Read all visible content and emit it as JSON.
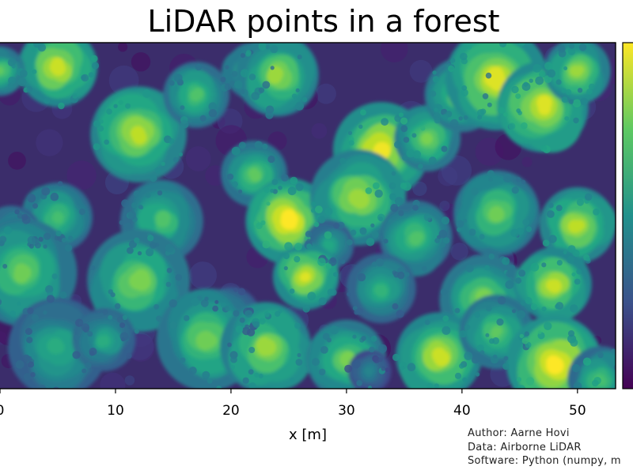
{
  "chart_data": {
    "type": "scatter",
    "title": "LiDAR points in a forest",
    "xlabel": "x [m]",
    "ylabel": "",
    "x_ticks": [
      0,
      10,
      20,
      30,
      40,
      50
    ],
    "xlim": [
      0,
      53.3
    ],
    "grid": false,
    "colormap": "viridis",
    "colorbar_position": "right",
    "trees": [
      {
        "x": 5.0,
        "h": 0.92
      },
      {
        "x": 0.0,
        "h": 0.75
      },
      {
        "x": 12.0,
        "h": 0.9
      },
      {
        "x": 17.0,
        "h": 0.72
      },
      {
        "x": 22.0,
        "h": 0.7
      },
      {
        "x": 24.0,
        "h": 0.85
      },
      {
        "x": 33.0,
        "h": 0.98
      },
      {
        "x": 37.0,
        "h": 0.8
      },
      {
        "x": 40.0,
        "h": 0.8
      },
      {
        "x": 43.0,
        "h": 0.95
      },
      {
        "x": 47.0,
        "h": 0.95
      },
      {
        "x": 50.0,
        "h": 0.85
      },
      {
        "x": 5.0,
        "h": 0.7
      },
      {
        "x": 1.0,
        "h": 0.62
      },
      {
        "x": 14.0,
        "h": 0.72
      },
      {
        "x": 22.0,
        "h": 0.75
      },
      {
        "x": 25.0,
        "h": 1.0
      },
      {
        "x": 31.0,
        "h": 0.85
      },
      {
        "x": 28.5,
        "h": 0.6
      },
      {
        "x": 36.0,
        "h": 0.72
      },
      {
        "x": 43.0,
        "h": 0.78
      },
      {
        "x": 50.0,
        "h": 0.9
      },
      {
        "x": 2.0,
        "h": 0.78
      },
      {
        "x": 12.0,
        "h": 0.8
      },
      {
        "x": 20.0,
        "h": 0.55
      },
      {
        "x": 26.5,
        "h": 0.95
      },
      {
        "x": 33.0,
        "h": 0.65
      },
      {
        "x": 42.0,
        "h": 0.8
      },
      {
        "x": 48.0,
        "h": 0.92
      },
      {
        "x": 5.0,
        "h": 0.62
      },
      {
        "x": 18.0,
        "h": 0.78
      },
      {
        "x": 23.0,
        "h": 0.85
      },
      {
        "x": 30.0,
        "h": 0.8
      },
      {
        "x": 38.0,
        "h": 0.92
      },
      {
        "x": 43.0,
        "h": 0.75
      },
      {
        "x": 48.0,
        "h": 1.0
      },
      {
        "x": 52.0,
        "h": 0.7
      },
      {
        "x": 9.0,
        "h": 0.62
      },
      {
        "x": 32.0,
        "h": 0.45
      }
    ],
    "credits": [
      "Author: Aarne Hovi",
      "Data: Airborne LiDAR",
      "Software: Python (numpy, m"
    ]
  }
}
